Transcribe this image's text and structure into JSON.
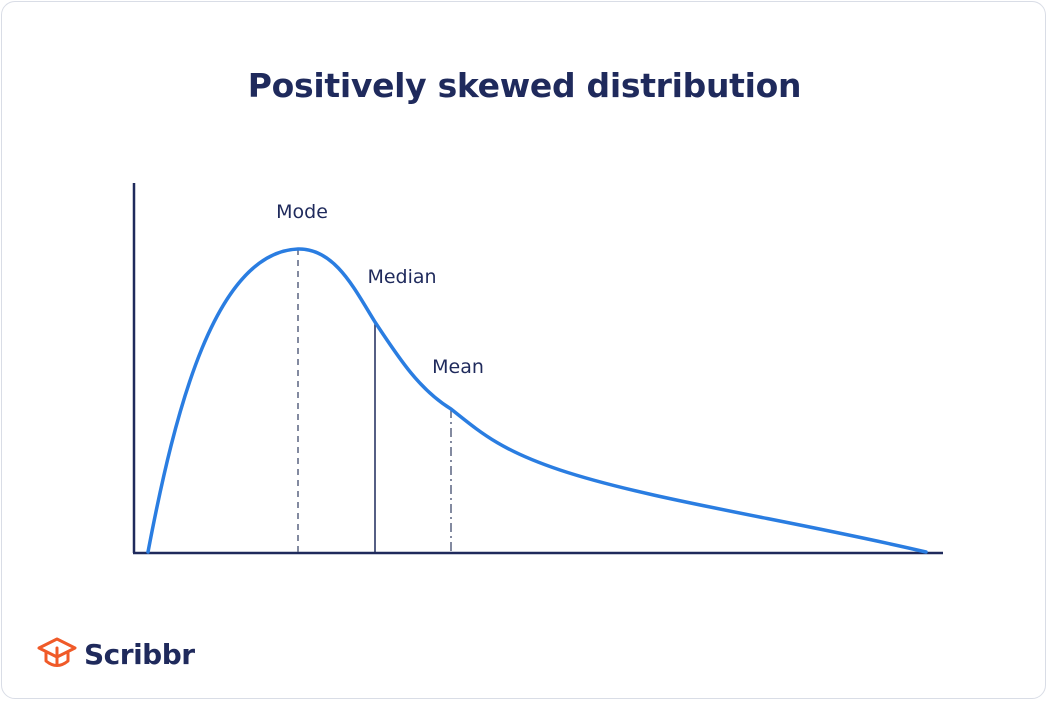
{
  "title": "Positively skewed distribution",
  "labels": {
    "mode": "Mode",
    "median": "Median",
    "mean": "Mean"
  },
  "brand": {
    "name": "Scribbr",
    "icon": "graduation-cap-logo-icon",
    "color": "#f05a28"
  },
  "colors": {
    "curve": "#2a7de1",
    "axis": "#1f2a5c",
    "text": "#1f2a5c"
  }
}
